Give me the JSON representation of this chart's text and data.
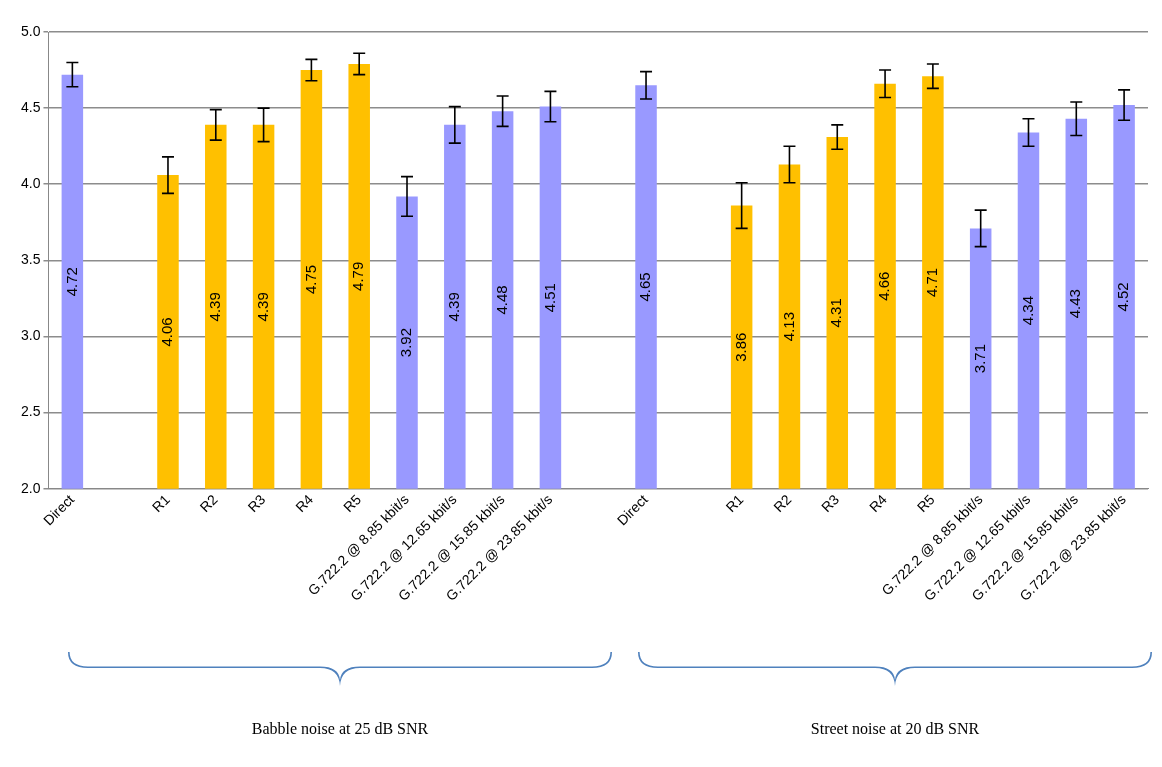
{
  "chart_data": {
    "type": "bar",
    "categories": [
      "Direct",
      null,
      "R1",
      "R2",
      "R3",
      "R4",
      "R5",
      "G.722.2 @ 8.85 kbit/s",
      "G.722.2 @ 12.65 kbit/s",
      "G.722.2 @ 15.85 kbit/s",
      "G.722.2 @ 23.85 kbit/s",
      null,
      "Direct",
      null,
      "R1",
      "R2",
      "R3",
      "R4",
      "R5",
      "G.722.2 @ 8.85 kbit/s",
      "G.722.2 @ 12.65 kbit/s",
      "G.722.2 @ 15.85 kbit/s",
      "G.722.2 @ 23.85 kbit/s"
    ],
    "values": [
      4.72,
      null,
      4.06,
      4.39,
      4.39,
      4.75,
      4.79,
      3.92,
      4.39,
      4.48,
      4.51,
      null,
      4.65,
      null,
      3.86,
      4.13,
      4.31,
      4.66,
      4.71,
      3.71,
      4.34,
      4.43,
      4.52
    ],
    "colors": [
      "#9999ff",
      null,
      "#ffc000",
      "#ffc000",
      "#ffc000",
      "#ffc000",
      "#ffc000",
      "#9999ff",
      "#9999ff",
      "#9999ff",
      "#9999ff",
      null,
      "#9999ff",
      null,
      "#ffc000",
      "#ffc000",
      "#ffc000",
      "#ffc000",
      "#ffc000",
      "#9999ff",
      "#9999ff",
      "#9999ff",
      "#9999ff"
    ],
    "errors": [
      0.08,
      null,
      0.12,
      0.1,
      0.11,
      0.07,
      0.07,
      0.13,
      0.12,
      0.1,
      0.1,
      null,
      0.09,
      null,
      0.15,
      0.12,
      0.08,
      0.09,
      0.08,
      0.12,
      0.09,
      0.11,
      0.1
    ],
    "data_labels": true,
    "ylim": [
      2.0,
      5.0
    ],
    "yticks": [
      {
        "value": 2,
        "label": "2.0"
      },
      {
        "value": 2.5,
        "label": "2.5"
      },
      {
        "value": 3,
        "label": "3.0"
      },
      {
        "value": 3.5,
        "label": "3.5"
      },
      {
        "value": 4,
        "label": "4.0"
      },
      {
        "value": 4.5,
        "label": "4.5"
      },
      {
        "value": 5,
        "label": "5.0"
      }
    ],
    "grid": "y",
    "legend": false,
    "annotations": [
      "Babble noise at 25 dB SNR",
      "Street noise at 20 dB SNR"
    ]
  }
}
